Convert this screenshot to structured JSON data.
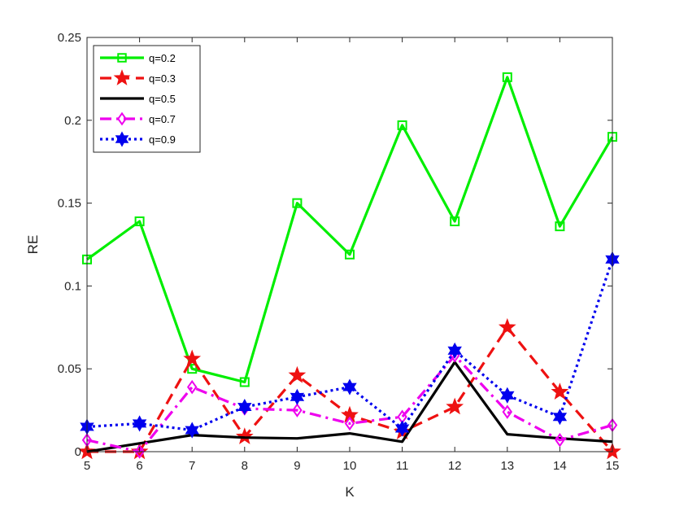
{
  "chart_data": {
    "type": "line",
    "title": "",
    "xlabel": "K",
    "ylabel": "RE",
    "xlim": [
      5,
      15
    ],
    "ylim": [
      0,
      0.25
    ],
    "x": [
      5,
      6,
      7,
      8,
      9,
      10,
      11,
      12,
      13,
      14,
      15
    ],
    "x_tick_labels": [
      "5",
      "6",
      "7",
      "8",
      "9",
      "10",
      "11",
      "12",
      "13",
      "14",
      "15"
    ],
    "y_ticks": [
      0,
      0.05,
      0.1,
      0.15,
      0.2,
      0.25
    ],
    "y_tick_labels": [
      "0",
      "0.05",
      "0.1",
      "0.15",
      "0.2",
      "0.25"
    ],
    "grid": false,
    "legend_position": "top-left",
    "series": [
      {
        "name": "q=0.2",
        "color": "#00ee00",
        "dash": "solid",
        "marker": "square",
        "values": [
          0.116,
          0.139,
          0.05,
          0.042,
          0.15,
          0.119,
          0.197,
          0.139,
          0.226,
          0.136,
          0.19
        ]
      },
      {
        "name": "q=0.3",
        "color": "#ee1111",
        "dash": "dashed",
        "marker": "pentagram",
        "values": [
          0.0,
          0.0,
          0.056,
          0.009,
          0.046,
          0.022,
          0.012,
          0.027,
          0.075,
          0.036,
          0.0
        ]
      },
      {
        "name": "q=0.5",
        "color": "#000000",
        "dash": "solid",
        "marker": "none",
        "values": [
          0.0,
          0.005,
          0.01,
          0.0085,
          0.008,
          0.011,
          0.006,
          0.054,
          0.0105,
          0.008,
          0.006
        ]
      },
      {
        "name": "q=0.7",
        "color": "#ee00ee",
        "dash": "dash-dot",
        "marker": "diamond",
        "values": [
          0.007,
          0.0,
          0.039,
          0.026,
          0.025,
          0.017,
          0.021,
          0.058,
          0.024,
          0.007,
          0.016
        ]
      },
      {
        "name": "q=0.9",
        "color": "#0000ee",
        "dash": "dotted",
        "marker": "hexagram",
        "values": [
          0.015,
          0.017,
          0.013,
          0.027,
          0.033,
          0.039,
          0.014,
          0.061,
          0.034,
          0.021,
          0.116
        ]
      }
    ]
  }
}
